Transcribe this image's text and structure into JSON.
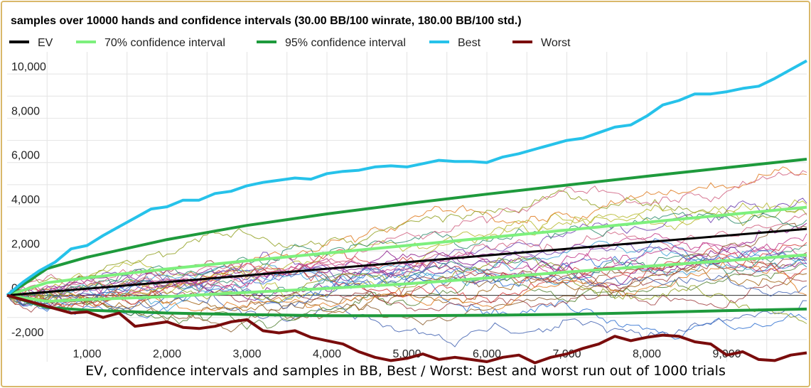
{
  "caption": "EV, confidence intervals and samples in BB, Best / Worst: Best and worst run out of 1000 trials",
  "chart_data": {
    "type": "line",
    "title": "samples over 10000 hands and confidence intervals (30.00 BB/100 winrate, 180.00 BB/100 std.)",
    "winrate_bb_per_100": 30.0,
    "std_bb_per_100": 180.0,
    "hands": 10000,
    "xlim": [
      0,
      10000
    ],
    "ylim": [
      -3000,
      11000
    ],
    "x_ticks": [
      {
        "v": 1000,
        "label": "1,000"
      },
      {
        "v": 2000,
        "label": "2,000"
      },
      {
        "v": 3000,
        "label": "3,000"
      },
      {
        "v": 4000,
        "label": "4,000"
      },
      {
        "v": 5000,
        "label": "5,000"
      },
      {
        "v": 6000,
        "label": "6,000"
      },
      {
        "v": 7000,
        "label": "7,000"
      },
      {
        "v": 8000,
        "label": "8,000"
      },
      {
        "v": 9000,
        "label": "9,000"
      }
    ],
    "y_ticks": [
      {
        "v": -2000,
        "label": "-2,000"
      },
      {
        "v": 0,
        "label": "0"
      },
      {
        "v": 2000,
        "label": "2,000"
      },
      {
        "v": 4000,
        "label": "4,000"
      },
      {
        "v": 6000,
        "label": "6,000"
      },
      {
        "v": 8000,
        "label": "8,000"
      },
      {
        "v": 10000,
        "label": "10,000"
      }
    ],
    "grid": true,
    "legend": {
      "position": "top",
      "entries": [
        {
          "name": "EV",
          "color": "#000000"
        },
        {
          "name": "70% confidence interval",
          "color": "#7df07d"
        },
        {
          "name": "95% confidence interval",
          "color": "#1e9a3c"
        },
        {
          "name": "Best",
          "color": "#26c2ea"
        },
        {
          "name": "Worst",
          "color": "#7a0c0c"
        }
      ]
    },
    "ev": {
      "x": [
        0,
        10000
      ],
      "y": [
        0,
        3000
      ]
    },
    "ci70": {
      "upper": {
        "x": [
          0,
          500,
          1000,
          2000,
          3000,
          4000,
          5000,
          6000,
          7000,
          8000,
          9000,
          10000
        ],
        "y": [
          0,
          570,
          790,
          1190,
          1560,
          1910,
          2250,
          2600,
          2950,
          3300,
          3640,
          3980
        ]
      },
      "lower": {
        "x": [
          0,
          500,
          1000,
          2000,
          3000,
          4000,
          5000,
          6000,
          7000,
          8000,
          9000,
          10000
        ],
        "y": [
          0,
          -270,
          -190,
          -60,
          130,
          310,
          520,
          780,
          1050,
          1310,
          1570,
          1830
        ]
      }
    },
    "ci95": {
      "upper": {
        "x": [
          0,
          500,
          1000,
          2000,
          3000,
          4000,
          5000,
          6000,
          7000,
          8000,
          9000,
          10000
        ],
        "y": [
          0,
          1210,
          1720,
          2520,
          3160,
          3680,
          4140,
          4570,
          4980,
          5380,
          5770,
          6150
        ]
      },
      "lower": {
        "x": [
          0,
          500,
          1000,
          2000,
          3000,
          4000,
          5000,
          6000,
          7000,
          8000,
          9000,
          10000
        ],
        "y": [
          0,
          -550,
          -670,
          -800,
          -870,
          -920,
          -920,
          -900,
          -860,
          -780,
          -690,
          -620
        ]
      }
    },
    "best": {
      "x": [
        0,
        200,
        400,
        600,
        800,
        1000,
        1200,
        1400,
        1600,
        1800,
        2000,
        2200,
        2400,
        2600,
        2800,
        3000,
        3200,
        3400,
        3600,
        3800,
        4000,
        4200,
        4400,
        4600,
        4800,
        5000,
        5200,
        5400,
        5600,
        5800,
        6000,
        6200,
        6400,
        6600,
        6800,
        7000,
        7200,
        7400,
        7600,
        7800,
        8000,
        8200,
        8400,
        8600,
        8800,
        9000,
        9200,
        9400,
        9600,
        9800,
        10000
      ],
      "y": [
        0,
        600,
        1100,
        1500,
        2100,
        2250,
        2700,
        3100,
        3500,
        3900,
        4000,
        4300,
        4300,
        4600,
        4700,
        4950,
        5100,
        5200,
        5300,
        5250,
        5500,
        5600,
        5650,
        5800,
        5850,
        5800,
        5950,
        6100,
        6050,
        6050,
        6000,
        6250,
        6400,
        6600,
        6800,
        7000,
        7100,
        7350,
        7600,
        7700,
        8100,
        8600,
        8800,
        9100,
        9100,
        9200,
        9350,
        9450,
        9800,
        10200,
        10600
      ]
    },
    "worst": {
      "x": [
        0,
        200,
        400,
        600,
        800,
        1000,
        1200,
        1400,
        1600,
        1800,
        2000,
        2200,
        2400,
        2600,
        2800,
        3000,
        3200,
        3400,
        3600,
        3800,
        4000,
        4200,
        4400,
        4600,
        4800,
        5000,
        5200,
        5400,
        5600,
        5800,
        6000,
        6200,
        6400,
        6600,
        6800,
        7000,
        7200,
        7400,
        7600,
        7800,
        8000,
        8200,
        8400,
        8600,
        8800,
        9000,
        9200,
        9400,
        9600,
        9800,
        10000
      ],
      "y": [
        0,
        -200,
        -400,
        -600,
        -800,
        -750,
        -1000,
        -800,
        -1400,
        -1300,
        -1200,
        -1450,
        -1500,
        -1400,
        -1200,
        -1100,
        -1600,
        -1700,
        -1600,
        -1900,
        -2050,
        -2200,
        -2550,
        -2800,
        -2950,
        -2850,
        -2650,
        -2900,
        -2800,
        -2900,
        -3000,
        -2800,
        -2700,
        -3050,
        -2800,
        -2650,
        -2400,
        -2200,
        -1850,
        -2050,
        -1900,
        -1800,
        -1850,
        -2100,
        -2200,
        -2700,
        -2550,
        -2900,
        -2950,
        -2700,
        -2600
      ]
    },
    "samples": {
      "count": 30,
      "colors": [
        "#b5b82a",
        "#8b1a8b",
        "#2d6fd0",
        "#e07b20",
        "#8a5a2a",
        "#d43a3a",
        "#3aa0d4",
        "#6c3fb0",
        "#c23a8a",
        "#2a8a6a",
        "#a04040",
        "#4060b0",
        "#90a020",
        "#d06080",
        "#508030",
        "#a06010"
      ]
    }
  }
}
